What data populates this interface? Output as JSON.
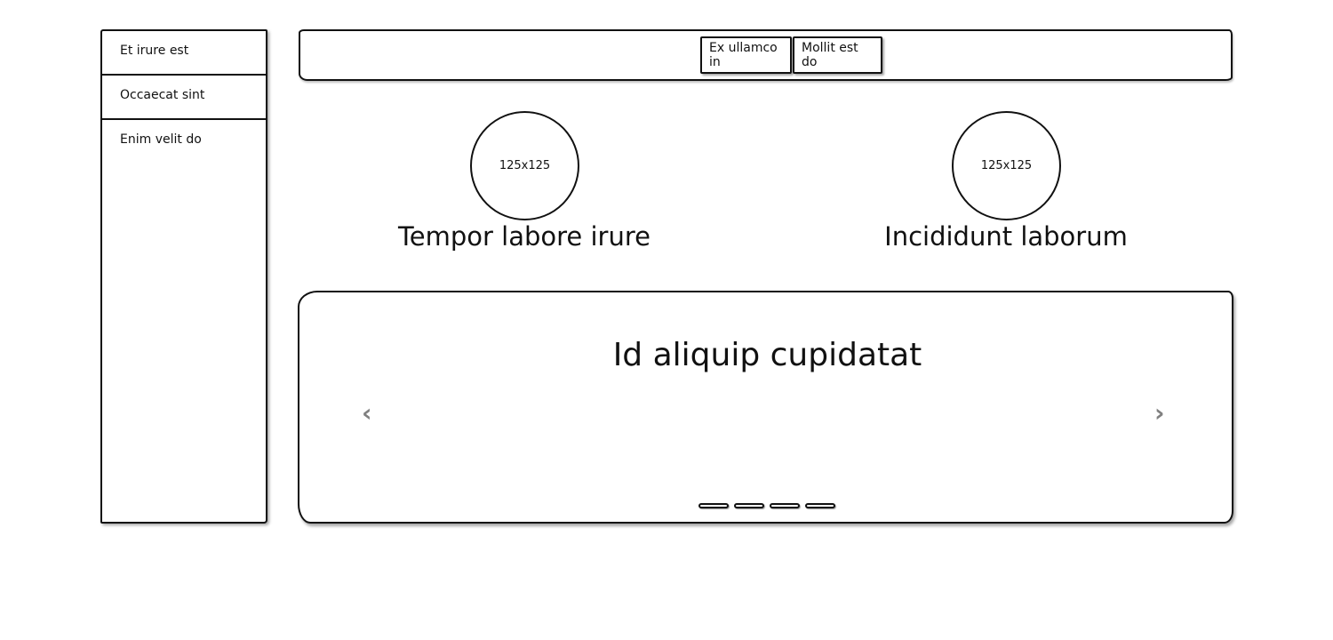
{
  "sidebar": {
    "items": [
      {
        "label": "Et irure est"
      },
      {
        "label": "Occaecat sint"
      },
      {
        "label": "Enim velit do"
      }
    ]
  },
  "topbar": {
    "buttons": [
      {
        "label": "Ex ullamco in"
      },
      {
        "label": "Mollit est do"
      }
    ]
  },
  "features": [
    {
      "image_label": "125x125",
      "caption": "Tempor labore irure"
    },
    {
      "image_label": "125x125",
      "caption": "Incididunt laborum"
    }
  ],
  "carousel": {
    "title": "Id aliquip cupidatat",
    "prev_icon": "chevron-left-icon",
    "next_icon": "chevron-right-icon",
    "prev_glyph": "‹",
    "next_glyph": "›",
    "slide_count": 4,
    "arrow_color": "#808080"
  }
}
